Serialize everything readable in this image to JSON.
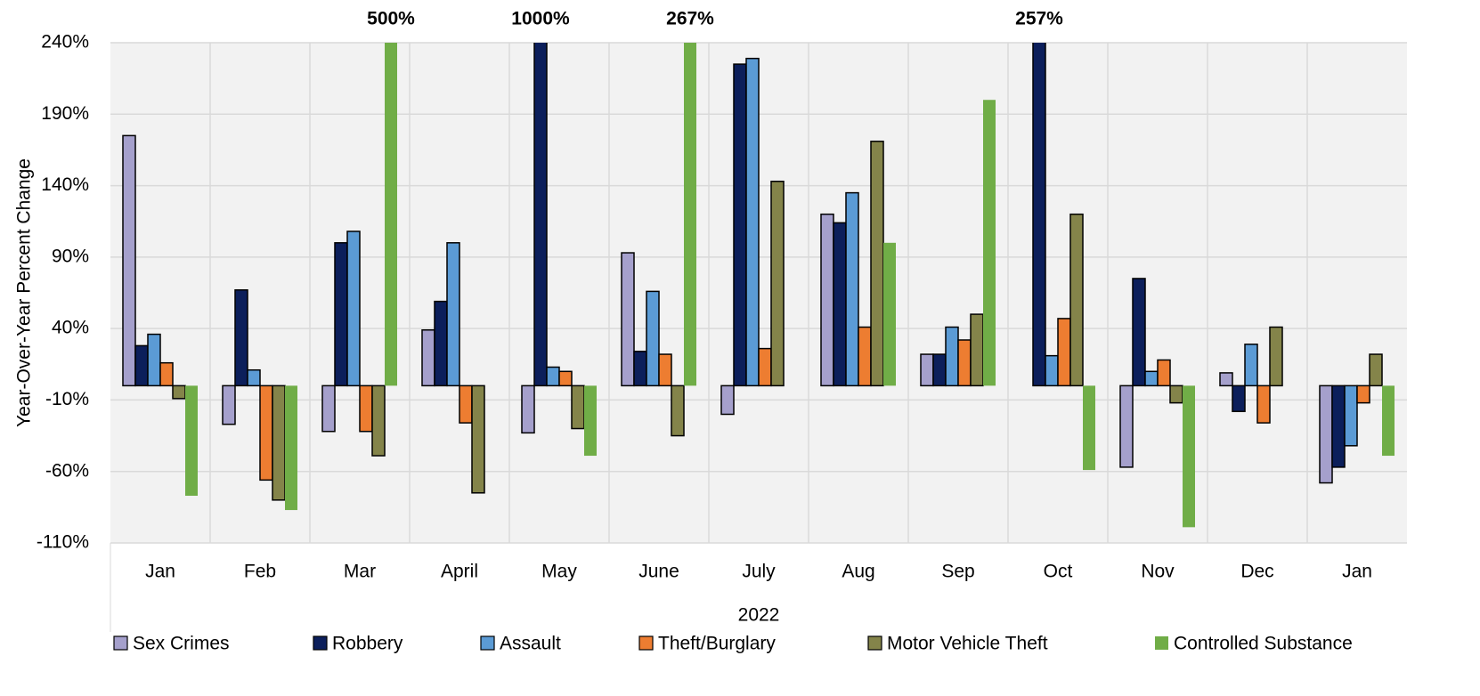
{
  "chart_data": {
    "type": "bar",
    "y_label": "Year-Over-Year Percent Change",
    "x_label": "2022",
    "categories": [
      "Jan",
      "Feb",
      "Mar",
      "April",
      "May",
      "June",
      "July",
      "Aug",
      "Sep",
      "Oct",
      "Nov",
      "Dec",
      "Jan"
    ],
    "ylim": [
      -110,
      240
    ],
    "yticks": [
      {
        "value": -110,
        "label": "-110%"
      },
      {
        "value": -60,
        "label": "-60%"
      },
      {
        "value": -10,
        "label": "-10%"
      },
      {
        "value": 40,
        "label": "40%"
      },
      {
        "value": 90,
        "label": "90%"
      },
      {
        "value": 140,
        "label": "140%"
      },
      {
        "value": 190,
        "label": "190%"
      },
      {
        "value": 240,
        "label": "240%"
      }
    ],
    "grid": true,
    "legend": "bottom",
    "series": [
      {
        "name": "Sex Crimes",
        "color": "#a5a0cc",
        "values": [
          175,
          -27,
          -32,
          39,
          -33,
          93,
          -20,
          120,
          22,
          0,
          -57,
          9,
          -68
        ]
      },
      {
        "name": "Robbery",
        "color": "#0c1f5b",
        "values": [
          28,
          67,
          100,
          59,
          1000,
          24,
          225,
          114,
          22,
          257,
          75,
          -18,
          -57
        ],
        "value_labels": [
          null,
          null,
          null,
          null,
          "1000%",
          null,
          null,
          null,
          null,
          "257%",
          null,
          null,
          null
        ]
      },
      {
        "name": "Assault",
        "color": "#5b9bd5",
        "values": [
          36,
          11,
          108,
          100,
          13,
          66,
          229,
          135,
          41,
          21,
          10,
          29,
          -42
        ]
      },
      {
        "name": "Theft/Burglary",
        "color": "#ed7d31",
        "values": [
          16,
          -66,
          -32,
          -26,
          10,
          22,
          26,
          41,
          32,
          47,
          18,
          -26,
          -12
        ]
      },
      {
        "name": "Motor Vehicle Theft",
        "color": "#84844a",
        "values": [
          -9,
          -80,
          -49,
          -75,
          -30,
          -35,
          143,
          171,
          50,
          120,
          -12,
          41,
          22
        ]
      },
      {
        "name": "Controlled Substance",
        "color": "#70ad47",
        "values": [
          -77,
          -87,
          500,
          0,
          -49,
          267,
          0,
          100,
          200,
          -59,
          -99,
          0,
          -49
        ],
        "value_labels": [
          null,
          null,
          "500%",
          null,
          null,
          "267%",
          null,
          null,
          null,
          null,
          null,
          null,
          null
        ]
      }
    ]
  }
}
